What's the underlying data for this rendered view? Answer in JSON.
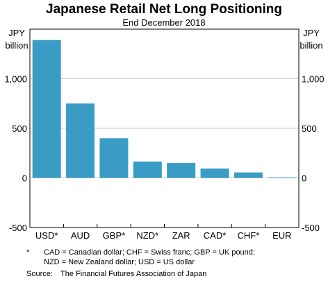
{
  "chart_data": {
    "type": "bar",
    "title": "Japanese Retail Net Long Positioning",
    "subtitle": "End December 2018",
    "ylabel_line1": "JPY",
    "ylabel_line2": "billion",
    "categories": [
      "USD*",
      "AUD",
      "GBP*",
      "NZD*",
      "ZAR",
      "CAD*",
      "CHF*",
      "EUR"
    ],
    "values": [
      1390,
      750,
      400,
      165,
      150,
      95,
      55,
      5
    ],
    "ylim": [
      -500,
      1500
    ],
    "yticks": [
      -500,
      0,
      500,
      1000
    ],
    "ytick_labels": [
      "-500",
      "0",
      "500",
      "1,000"
    ],
    "grid": true,
    "bar_color": "#3a9cc4",
    "grid_color": "#c8c8c8"
  },
  "footnote": {
    "marker": "*",
    "line1": "CAD = Canadian dollar; CHF = Swiss franc; GBP = UK pound;",
    "line2": "NZD = New Zealand dollar; USD = US dollar"
  },
  "source": {
    "label": "Source:",
    "text": "The Financial Futures Association of Japan"
  }
}
